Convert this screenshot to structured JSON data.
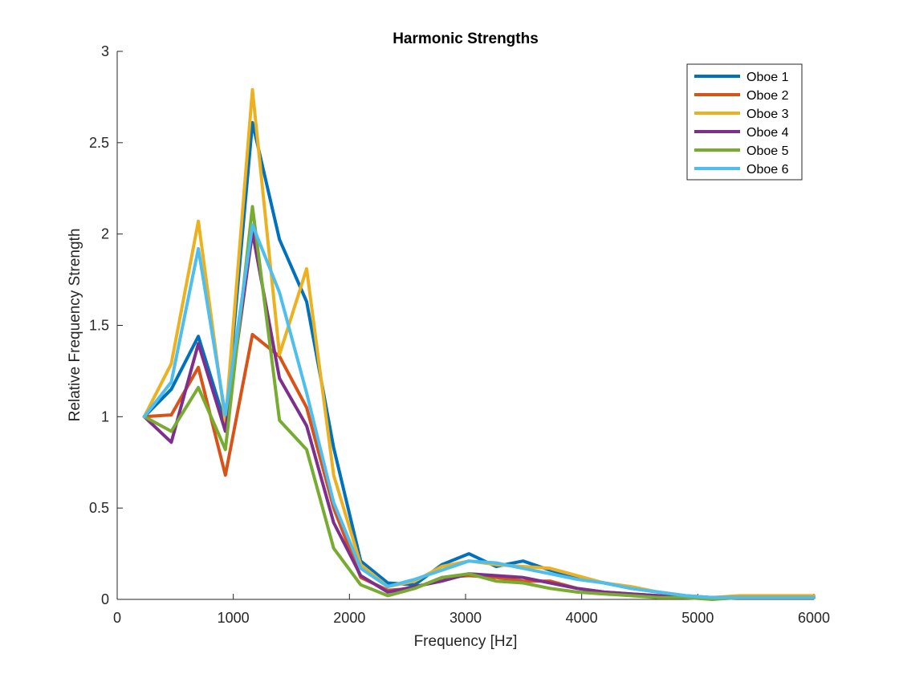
{
  "chart_data": {
    "type": "line",
    "title": "Harmonic Strengths",
    "xlabel": "Frequency [Hz]",
    "ylabel": "Relative Frequency Strength",
    "xlim": [
      0,
      6000
    ],
    "ylim": [
      0,
      3
    ],
    "xticks": [
      0,
      1000,
      2000,
      3000,
      4000,
      5000,
      6000
    ],
    "xtick_labels": [
      "0",
      "1000",
      "2000",
      "3000",
      "4000",
      "5000",
      "6000"
    ],
    "yticks": [
      0,
      0.5,
      1,
      1.5,
      2,
      2.5,
      3
    ],
    "ytick_labels": [
      "0",
      "0.5",
      "1",
      "1.5",
      "2",
      "2.5",
      "3"
    ],
    "grid": false,
    "legend_position": "top-right",
    "x": [
      233,
      466,
      699,
      932,
      1165,
      1398,
      1631,
      1864,
      2097,
      2330,
      2563,
      2796,
      3029,
      3262,
      3495,
      3728,
      3961,
      4194,
      4427,
      4660,
      4893,
      5126,
      5359,
      5592,
      5825,
      6000
    ],
    "series": [
      {
        "name": "Oboe 1",
        "color": "#0072BD",
        "values": [
          1.0,
          1.15,
          1.44,
          0.96,
          2.61,
          1.97,
          1.63,
          0.83,
          0.21,
          0.09,
          0.08,
          0.19,
          0.25,
          0.18,
          0.21,
          0.16,
          0.12,
          0.09,
          0.06,
          0.04,
          0.02,
          0.01,
          0.01,
          0.01,
          0.01,
          0.01
        ]
      },
      {
        "name": "Oboe 2",
        "color": "#D95319",
        "values": [
          1.0,
          1.01,
          1.27,
          0.68,
          1.45,
          1.33,
          1.05,
          0.5,
          0.12,
          0.05,
          0.06,
          0.12,
          0.13,
          0.12,
          0.1,
          0.1,
          0.06,
          0.04,
          0.03,
          0.02,
          0.01,
          0.01,
          0.01,
          0.01,
          0.01,
          0.01
        ]
      },
      {
        "name": "Oboe 3",
        "color": "#EDB120",
        "values": [
          1.0,
          1.29,
          2.07,
          0.97,
          2.79,
          1.34,
          1.81,
          0.68,
          0.19,
          0.07,
          0.1,
          0.18,
          0.21,
          0.19,
          0.18,
          0.17,
          0.13,
          0.09,
          0.07,
          0.04,
          0.02,
          0.01,
          0.02,
          0.02,
          0.02,
          0.02
        ]
      },
      {
        "name": "Oboe 4",
        "color": "#7E2F8E",
        "values": [
          1.0,
          0.86,
          1.4,
          0.92,
          2.01,
          1.21,
          0.95,
          0.42,
          0.13,
          0.04,
          0.07,
          0.1,
          0.14,
          0.13,
          0.12,
          0.09,
          0.06,
          0.04,
          0.03,
          0.02,
          0.01,
          0.01,
          0.01,
          0.01,
          0.01,
          0.01
        ]
      },
      {
        "name": "Oboe 5",
        "color": "#77AC30",
        "values": [
          1.0,
          0.92,
          1.16,
          0.82,
          2.15,
          0.98,
          0.82,
          0.28,
          0.08,
          0.02,
          0.06,
          0.12,
          0.14,
          0.1,
          0.09,
          0.06,
          0.04,
          0.03,
          0.02,
          0.01,
          0.01,
          0.0,
          0.01,
          0.01,
          0.01,
          0.01
        ]
      },
      {
        "name": "Oboe 6",
        "color": "#4DBEEE",
        "values": [
          1.0,
          1.19,
          1.92,
          1.01,
          2.05,
          1.68,
          1.13,
          0.53,
          0.17,
          0.07,
          0.11,
          0.16,
          0.21,
          0.2,
          0.17,
          0.14,
          0.11,
          0.09,
          0.06,
          0.04,
          0.02,
          0.01,
          0.01,
          0.01,
          0.01,
          0.01
        ]
      }
    ]
  }
}
